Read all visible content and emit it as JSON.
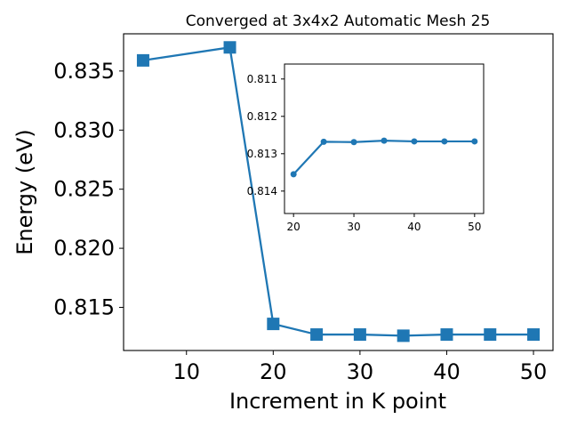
{
  "chart_data": [
    {
      "type": "line",
      "title": "Converged at 3x4x2 Automatic Mesh 25",
      "xlabel": "Increment in K point",
      "ylabel": "Energy (eV)",
      "xlim": [
        2.75,
        52.25
      ],
      "ylim": [
        0.81135,
        0.83815
      ],
      "xticks": [
        10,
        20,
        30,
        40,
        50
      ],
      "yticks": [
        0.815,
        0.82,
        0.825,
        0.83,
        0.835
      ],
      "ytick_labels": [
        "0.815",
        "0.820",
        "0.825",
        "0.830",
        "0.835"
      ],
      "marker": "square",
      "color": "#1f77b4",
      "grid": false,
      "series": [
        {
          "x": [
            5,
            15,
            20,
            25,
            30,
            35,
            40,
            45,
            50
          ],
          "y": [
            0.8359,
            0.837,
            0.8136,
            0.8127,
            0.8127,
            0.8126,
            0.8127,
            0.8127,
            0.8127
          ]
        }
      ]
    },
    {
      "type": "line",
      "title": "",
      "xlabel": "",
      "ylabel": "",
      "xlim": [
        18.5,
        51.5
      ],
      "ylim": [
        0.8146,
        0.8106
      ],
      "y_inverted": true,
      "xticks": [
        20,
        30,
        40,
        50
      ],
      "yticks": [
        0.811,
        0.812,
        0.813,
        0.814
      ],
      "ytick_labels": [
        "0.811",
        "0.812",
        "0.813",
        "0.814"
      ],
      "marker": "circle",
      "color": "#1f77b4",
      "grid": false,
      "series": [
        {
          "x": [
            20,
            25,
            30,
            35,
            40,
            45,
            50
          ],
          "y": [
            0.81355,
            0.81268,
            0.81269,
            0.81265,
            0.81267,
            0.81267,
            0.81267
          ]
        }
      ]
    }
  ]
}
